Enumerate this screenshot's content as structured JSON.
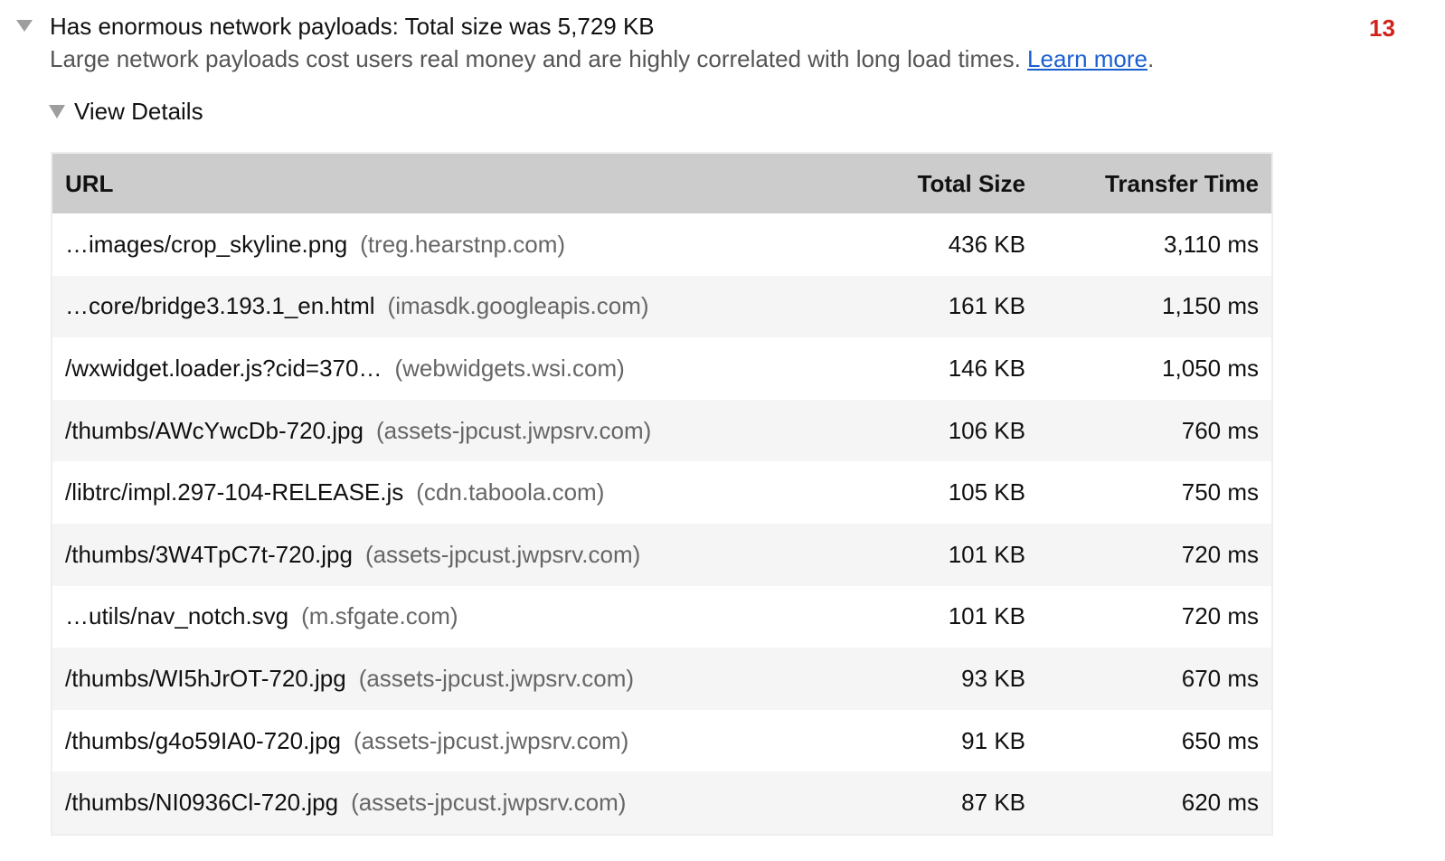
{
  "audit": {
    "title": "Has enormous network payloads: Total size was 5,729 KB",
    "description": "Large network payloads cost users real money and are highly correlated with long load times.",
    "learn_more": "Learn more",
    "description_end": ".",
    "score": "13",
    "score_color": "#d0241b",
    "view_details": "View Details"
  },
  "table": {
    "headers": [
      "URL",
      "Total Size",
      "Transfer Time"
    ],
    "rows": [
      {
        "url": "…images/crop_skyline.png",
        "host": "(treg.hearstnp.com)",
        "size": "436 KB",
        "time": "3,110 ms"
      },
      {
        "url": "…core/bridge3.193.1_en.html",
        "host": "(imasdk.googleapis.com)",
        "size": "161 KB",
        "time": "1,150 ms"
      },
      {
        "url": "/wxwidget.loader.js?cid=370…",
        "host": "(webwidgets.wsi.com)",
        "size": "146 KB",
        "time": "1,050 ms"
      },
      {
        "url": "/thumbs/AWcYwcDb-720.jpg",
        "host": "(assets-jpcust.jwpsrv.com)",
        "size": "106 KB",
        "time": "760 ms"
      },
      {
        "url": "/libtrc/impl.297-104-RELEASE.js",
        "host": "(cdn.taboola.com)",
        "size": "105 KB",
        "time": "750 ms"
      },
      {
        "url": "/thumbs/3W4TpC7t-720.jpg",
        "host": "(assets-jpcust.jwpsrv.com)",
        "size": "101 KB",
        "time": "720 ms"
      },
      {
        "url": "…utils/nav_notch.svg",
        "host": "(m.sfgate.com)",
        "size": "101 KB",
        "time": "720 ms"
      },
      {
        "url": "/thumbs/WI5hJrOT-720.jpg",
        "host": "(assets-jpcust.jwpsrv.com)",
        "size": "93 KB",
        "time": "670 ms"
      },
      {
        "url": "/thumbs/g4o59IA0-720.jpg",
        "host": "(assets-jpcust.jwpsrv.com)",
        "size": "91 KB",
        "time": "650 ms"
      },
      {
        "url": "/thumbs/NI0936Cl-720.jpg",
        "host": "(assets-jpcust.jwpsrv.com)",
        "size": "87 KB",
        "time": "620 ms"
      }
    ]
  }
}
